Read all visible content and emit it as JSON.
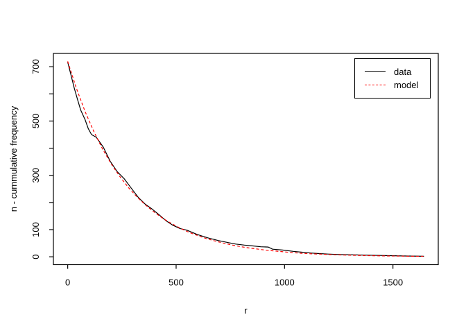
{
  "chart_data": {
    "type": "line",
    "title": "",
    "xlabel": "r",
    "ylabel": "n - cummulative frequency",
    "xlim": [
      -66,
      1709
    ],
    "ylim": [
      -29,
      749
    ],
    "grid": false,
    "background": "#ffffff",
    "axis_color": "#000000",
    "x_ticks": [
      {
        "v": 0,
        "label": "0"
      },
      {
        "v": 500,
        "label": "500"
      },
      {
        "v": 1000,
        "label": "1000"
      },
      {
        "v": 1500,
        "label": "1500"
      }
    ],
    "y_ticks": [
      {
        "v": 0,
        "label": "0"
      },
      {
        "v": 100,
        "label": "100"
      },
      {
        "v": 200,
        "label": ""
      },
      {
        "v": 300,
        "label": "300"
      },
      {
        "v": 400,
        "label": ""
      },
      {
        "v": 500,
        "label": "500"
      },
      {
        "v": 600,
        "label": ""
      },
      {
        "v": 700,
        "label": "700"
      }
    ],
    "legend": {
      "position": "top-right",
      "entries": [
        {
          "label": "data",
          "color": "#000000",
          "style": "solid"
        },
        {
          "label": "model",
          "color": "#ff0000",
          "style": "dashed"
        }
      ]
    },
    "series": [
      {
        "name": "data",
        "color": "#000000",
        "style": "solid",
        "x": [
          0,
          15,
          30,
          45,
          60,
          80,
          95,
          110,
          132,
          164,
          196,
          228,
          260,
          292,
          325,
          357,
          389,
          421,
          453,
          485,
          518,
          550,
          598,
          646,
          694,
          742,
          775,
          815,
          855,
          890,
          925,
          945,
          990,
          1040,
          1080,
          1120,
          1160,
          1200,
          1260,
          1320,
          1380,
          1440,
          1500,
          1560,
          1643
        ],
        "y": [
          717,
          670,
          622,
          580,
          540,
          505,
          472,
          450,
          440,
          404,
          352,
          314,
          288,
          254,
          219,
          194,
          176,
          155,
          133,
          116,
          104,
          98,
          82,
          70,
          60,
          52,
          47,
          43,
          40,
          37,
          36,
          28,
          25,
          20,
          17,
          14,
          12,
          10,
          8,
          7,
          6,
          5,
          4,
          3,
          2
        ]
      },
      {
        "name": "model",
        "color": "#ff0000",
        "style": "dashed",
        "x": [
          0,
          40,
          80,
          120,
          160,
          200,
          240,
          280,
          320,
          360,
          400,
          440,
          480,
          520,
          560,
          600,
          640,
          680,
          720,
          760,
          800,
          840,
          880,
          920,
          960,
          1000,
          1040,
          1080,
          1120,
          1160,
          1200,
          1240,
          1280,
          1320,
          1360,
          1400,
          1440,
          1480,
          1520,
          1560,
          1600,
          1640
        ],
        "y": [
          720,
          621,
          535,
          462,
          398,
          343,
          296,
          255,
          220,
          190,
          164,
          141,
          122,
          105,
          90,
          78,
          67,
          58,
          50,
          43,
          37,
          32,
          28,
          24,
          21,
          18,
          15,
          13,
          11,
          10,
          8.5,
          7.3,
          6.3,
          5.4,
          4.7,
          4,
          3.5,
          3,
          2.6,
          2.2,
          1.9,
          1.7
        ]
      }
    ]
  }
}
